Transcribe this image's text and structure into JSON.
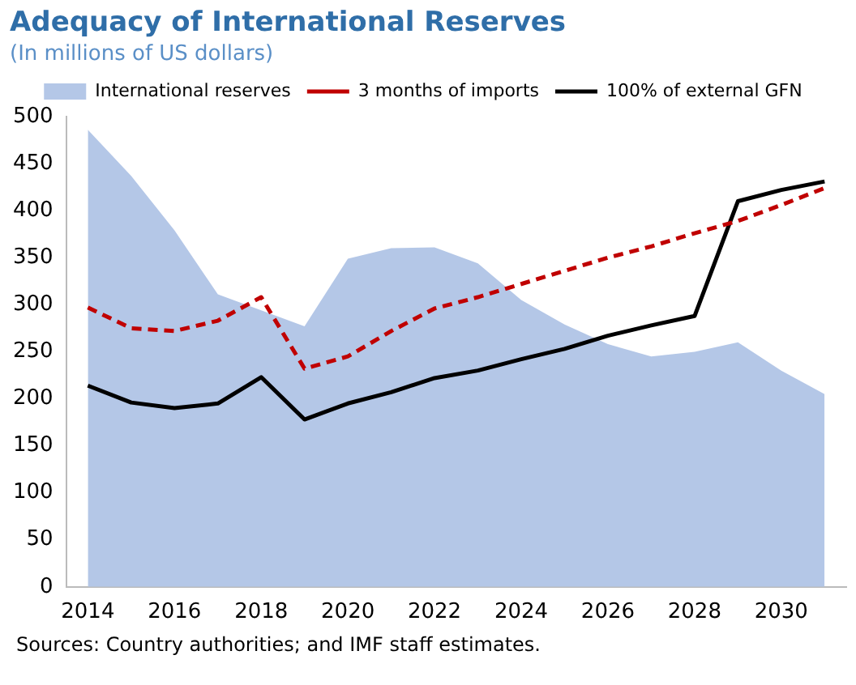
{
  "chart_data": {
    "type": "area",
    "title": "Adequacy of International Reserves",
    "subtitle": "(In millions of US dollars)",
    "categories": [
      "2014",
      null,
      "2016",
      null,
      "2018",
      null,
      "2020",
      null,
      "2022",
      null,
      "2024",
      null,
      "2026",
      null,
      "2028",
      null,
      "2030",
      null
    ],
    "series": [
      {
        "name": "International reserves",
        "type": "area",
        "color": "#b4c7e7",
        "values": [
          486,
          437,
          379,
          311,
          294,
          277,
          349,
          360,
          361,
          344,
          305,
          279,
          258,
          245,
          250,
          260,
          230,
          205
        ]
      },
      {
        "name": "3 months of imports",
        "type": "line",
        "line_style": "dashed",
        "color": "#c00000",
        "values": [
          297,
          275,
          272,
          283,
          308,
          232,
          245,
          272,
          296,
          308,
          322,
          336,
          350,
          362,
          376,
          389,
          406,
          424
        ]
      },
      {
        "name": "100% of external GFN",
        "type": "line",
        "line_style": "solid",
        "color": "#000000",
        "values": [
          214,
          196,
          190,
          195,
          223,
          178,
          195,
          207,
          222,
          230,
          242,
          253,
          267,
          278,
          288,
          410,
          422,
          431
        ]
      }
    ],
    "ylim": [
      0,
      500
    ],
    "yticks": [
      0,
      50,
      100,
      150,
      200,
      250,
      300,
      350,
      400,
      450,
      500
    ],
    "grid": false,
    "legend": "top",
    "marker": "none",
    "annotations": [
      "Sources: Country authorities; and IMF staff estimates."
    ]
  }
}
